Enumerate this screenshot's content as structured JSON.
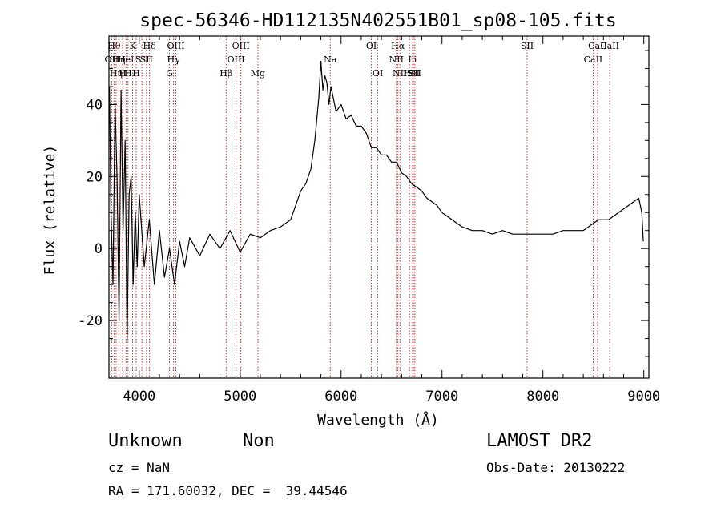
{
  "chart_data": {
    "type": "line",
    "title": "spec-56346-HD112135N402551B01_sp08-105.fits",
    "xlabel": "Wavelength (Å)",
    "ylabel": "Flux (relative)",
    "xlim": [
      3700,
      9050
    ],
    "ylim": [
      -36,
      59
    ],
    "x_ticks": [
      4000,
      5000,
      6000,
      7000,
      8000,
      9000
    ],
    "y_ticks": [
      -20,
      0,
      20,
      40
    ],
    "grid": false,
    "series": [
      {
        "x": [
          3705,
          3720,
          3740,
          3760,
          3780,
          3800,
          3820,
          3840,
          3860,
          3880,
          3900,
          3920,
          3940,
          3960,
          3980,
          4000,
          4050,
          4100,
          4150,
          4200,
          4250,
          4300,
          4350,
          4400,
          4450,
          4500,
          4600,
          4700,
          4800,
          4900,
          5000,
          5100,
          5200,
          5300,
          5400,
          5500,
          5550,
          5600,
          5650,
          5700,
          5740,
          5780,
          5800,
          5820,
          5840,
          5860,
          5880,
          5900,
          5950,
          6000,
          6050,
          6100,
          6150,
          6200,
          6250,
          6300,
          6350,
          6400,
          6450,
          6500,
          6550,
          6600,
          6650,
          6700,
          6750,
          6800,
          6850,
          6900,
          6950,
          7000,
          7100,
          7200,
          7300,
          7400,
          7500,
          7600,
          7700,
          7800,
          7900,
          8000,
          8100,
          8200,
          8300,
          8400,
          8450,
          8500,
          8550,
          8600,
          8650,
          8700,
          8750,
          8800,
          8850,
          8900,
          8950,
          8980,
          8995
        ],
        "y": [
          45,
          10,
          -10,
          40,
          20,
          -20,
          44,
          5,
          30,
          -25,
          15,
          20,
          -10,
          10,
          -5,
          15,
          -5,
          8,
          -10,
          5,
          -8,
          0,
          -10,
          2,
          -5,
          3,
          -2,
          4,
          0,
          5,
          -1,
          4,
          3,
          5,
          6,
          8,
          12,
          16,
          18,
          22,
          30,
          42,
          52,
          44,
          48,
          46,
          40,
          45,
          38,
          40,
          36,
          37,
          34,
          34,
          32,
          28,
          28,
          26,
          26,
          24,
          24,
          21,
          20,
          18,
          17,
          16,
          14,
          13,
          12,
          10,
          8,
          6,
          5,
          5,
          4,
          5,
          4,
          4,
          4,
          4,
          4,
          5,
          5,
          5,
          6,
          7,
          8,
          8,
          8,
          9,
          10,
          11,
          12,
          13,
          14,
          10,
          2
        ]
      }
    ],
    "line_markers": [
      {
        "x": 3727,
        "label": "OII",
        "row": 2
      },
      {
        "x": 3750,
        "label": "Hθ",
        "row": 1
      },
      {
        "x": 3771,
        "label": "Hη",
        "row": 3
      },
      {
        "x": 3798,
        "label": "Hη",
        "row": 2
      },
      {
        "x": 3835,
        "label": "H",
        "row": 3
      },
      {
        "x": 3869,
        "label": "HeI",
        "row": 2
      },
      {
        "x": 3889,
        "label": "H",
        "row": 3
      },
      {
        "x": 3934,
        "label": "K",
        "row": 1
      },
      {
        "x": 3970,
        "label": "H",
        "row": 3
      },
      {
        "x": 4026,
        "label": "SII",
        "row": 2
      },
      {
        "x": 4072,
        "label": "SII",
        "row": 2
      },
      {
        "x": 4102,
        "label": "Hδ",
        "row": 1
      },
      {
        "x": 4300,
        "label": "G",
        "row": 3
      },
      {
        "x": 4340,
        "label": "Hγ",
        "row": 2
      },
      {
        "x": 4363,
        "label": "OIII",
        "row": 1
      },
      {
        "x": 4861,
        "label": "Hβ",
        "row": 3
      },
      {
        "x": 4959,
        "label": "OIII",
        "row": 2
      },
      {
        "x": 5007,
        "label": "OIII",
        "row": 1
      },
      {
        "x": 5176,
        "label": "Mg",
        "row": 3
      },
      {
        "x": 5893,
        "label": "Na",
        "row": 2
      },
      {
        "x": 6300,
        "label": "OI",
        "row": 1
      },
      {
        "x": 6364,
        "label": "OI",
        "row": 3
      },
      {
        "x": 6548,
        "label": "NII",
        "row": 2
      },
      {
        "x": 6563,
        "label": "Hα",
        "row": 1
      },
      {
        "x": 6583,
        "label": "NII",
        "row": 3
      },
      {
        "x": 6678,
        "label": "He",
        "row": 3
      },
      {
        "x": 6708,
        "label": "Li",
        "row": 2
      },
      {
        "x": 6716,
        "label": "SII",
        "row": 3
      },
      {
        "x": 6731,
        "label": "SII",
        "row": 3
      },
      {
        "x": 7843,
        "label": "SII",
        "row": 1
      },
      {
        "x": 8498,
        "label": "CaII",
        "row": 2
      },
      {
        "x": 8542,
        "label": "CaII",
        "row": 1
      },
      {
        "x": 8662,
        "label": "CaII",
        "row": 1
      }
    ]
  },
  "info": {
    "class": "Unknown",
    "subclass": "Non",
    "survey": "LAMOST DR2",
    "cz": "cz = NaN",
    "obs_date": "Obs-Date: 20130222",
    "coords": "RA = 171.60032, DEC =  39.44546"
  },
  "colors": {
    "axis": "#000000",
    "spectrum": "#000000",
    "marker_line": "#b22222"
  }
}
